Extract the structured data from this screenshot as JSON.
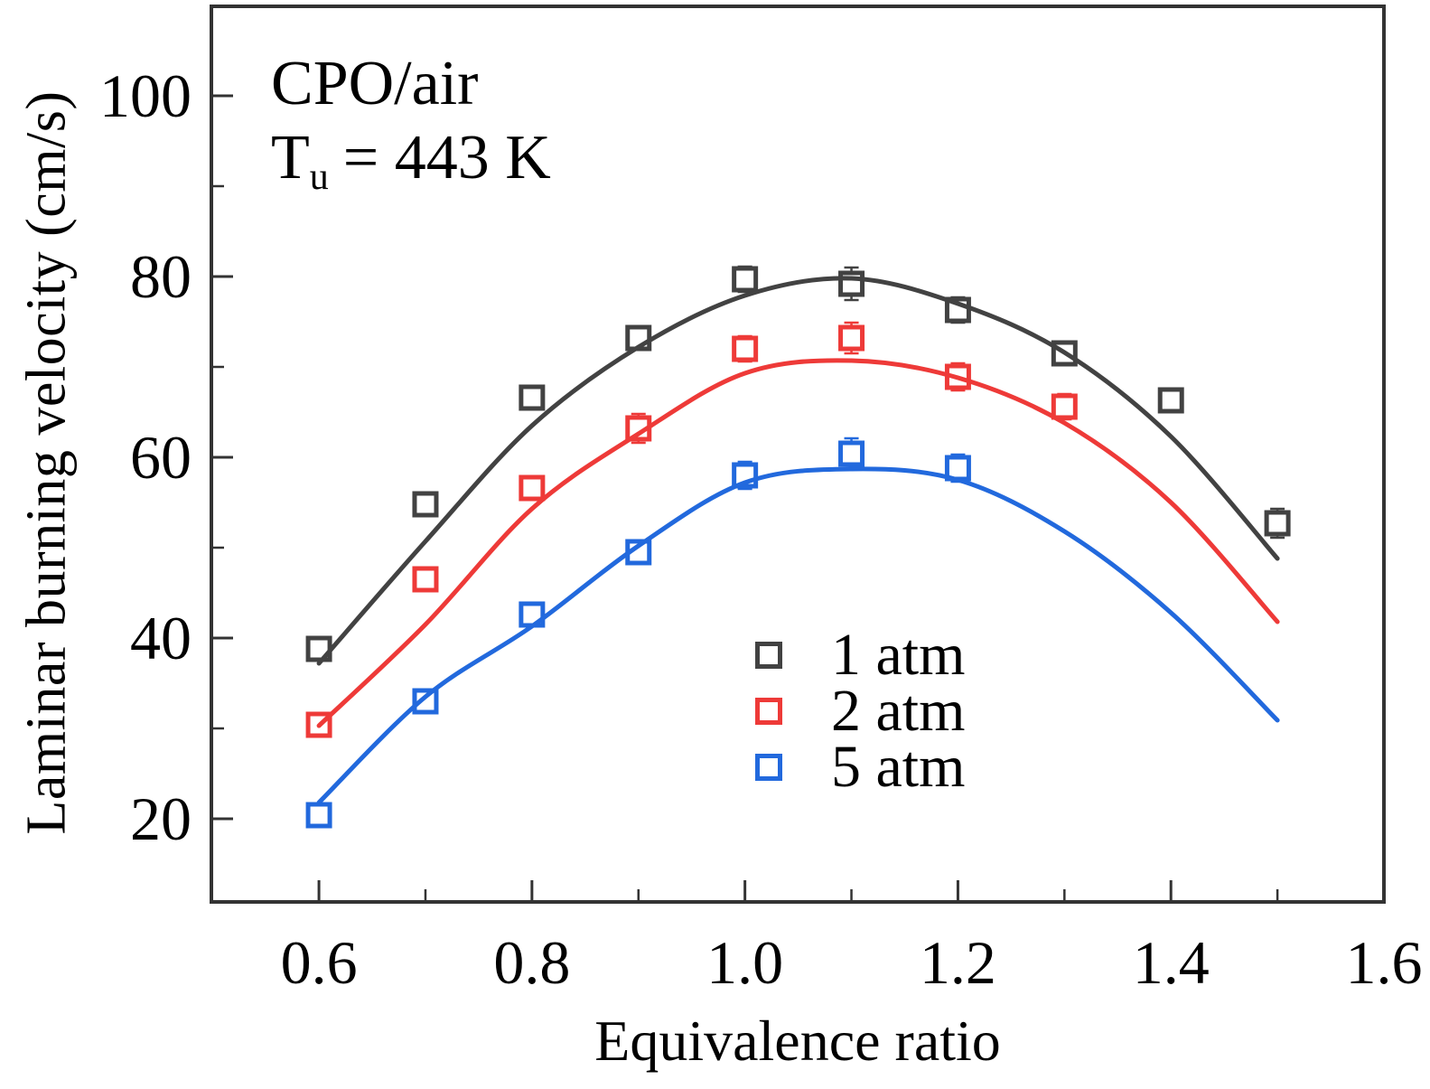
{
  "chart_data": {
    "type": "scatter",
    "title": "",
    "annotation": {
      "fuel": "CPO/air",
      "temp_prefix": "T",
      "temp_sub": "u",
      "temp_suffix": "= 443 K"
    },
    "xlabel": "Equivalence ratio",
    "ylabel": "Laminar burning velocity (cm/s)",
    "xlim": [
      0.499,
      1.6
    ],
    "ylim": [
      10.8,
      109.9
    ],
    "xticks": {
      "values": [
        0.6,
        0.8,
        1.0,
        1.2,
        1.4,
        1.6
      ],
      "labels": [
        "0.6",
        "0.8",
        "1.0",
        "1.2",
        "1.4",
        "1.6"
      ],
      "minor": [
        0.7,
        0.9,
        1.1,
        1.3,
        1.5
      ]
    },
    "yticks": {
      "values": [
        20,
        40,
        60,
        80,
        100
      ],
      "labels": [
        "20",
        "40",
        "60",
        "80",
        "100"
      ],
      "minor": [
        30,
        50,
        70,
        90
      ]
    },
    "grid": false,
    "legend": {
      "position": "inside-lower-right",
      "entries": [
        "1 atm",
        "2 atm",
        "5 atm"
      ]
    },
    "curve_x": [
      0.6,
      0.7,
      0.8,
      0.9,
      1.0,
      1.1,
      1.2,
      1.3,
      1.4,
      1.5
    ],
    "series": [
      {
        "name": "1 atm",
        "color": "#424242",
        "marker": "open-square",
        "x": [
          0.6,
          0.7,
          0.8,
          0.9,
          1.0,
          1.1,
          1.2,
          1.3,
          1.4,
          1.5
        ],
        "y": [
          38.8,
          54.8,
          66.6,
          73.2,
          79.7,
          79.2,
          76.3,
          71.5,
          66.3,
          52.7
        ],
        "yerr": [
          0.8,
          0.7,
          0.7,
          1.3,
          1.4,
          1.8,
          1.4,
          1.0,
          1.3,
          1.6
        ],
        "curve_y": [
          37.2,
          50.7,
          63.5,
          72.2,
          77.9,
          79.8,
          77.0,
          71.6,
          62.3,
          48.8
        ]
      },
      {
        "name": "2 atm",
        "color": "#ee3a38",
        "marker": "open-square",
        "x": [
          0.6,
          0.7,
          0.8,
          0.9,
          1.0,
          1.1,
          1.2,
          1.3
        ],
        "y": [
          30.4,
          46.5,
          56.6,
          63.2,
          72.0,
          73.2,
          68.9,
          65.6
        ],
        "yerr": [
          0.8,
          0.7,
          0.8,
          1.6,
          1.4,
          1.7,
          1.5,
          1.4
        ],
        "curve_y": [
          30.3,
          41.5,
          54.3,
          62.6,
          69.3,
          70.7,
          68.8,
          63.8,
          55.0,
          41.8
        ]
      },
      {
        "name": "5 atm",
        "color": "#2269dd",
        "marker": "open-square",
        "x": [
          0.6,
          0.7,
          0.8,
          0.9,
          1.0,
          1.1,
          1.2
        ],
        "y": [
          20.4,
          33.0,
          42.6,
          49.5,
          58.0,
          60.4,
          58.8
        ],
        "yerr": [
          0.7,
          0.8,
          0.9,
          1.2,
          1.5,
          1.7,
          1.5
        ],
        "curve_y": [
          21.8,
          33.5,
          41.3,
          50.2,
          57.2,
          58.7,
          57.5,
          51.8,
          42.8,
          30.9
        ]
      }
    ]
  }
}
